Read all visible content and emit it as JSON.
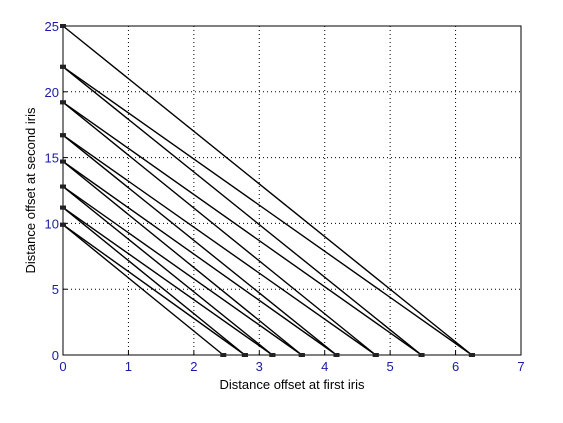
{
  "chart_data": {
    "type": "line",
    "title": "",
    "xlabel": "Distance offset at first iris",
    "ylabel": "Distance offset at second iris",
    "xlim": [
      0,
      7
    ],
    "ylim": [
      0,
      25
    ],
    "x_ticks": [
      0,
      1,
      2,
      3,
      4,
      5,
      6,
      7
    ],
    "y_ticks": [
      0,
      5,
      10,
      15,
      20,
      25
    ],
    "grid": true,
    "grid_style": "dotted",
    "legend": "none",
    "colors": {
      "line": "#000000",
      "tick_label": "#1a1aaa",
      "grid": "#000000"
    },
    "series": [
      {
        "x": [
          0,
          2.45
        ],
        "y": [
          9.9,
          0
        ]
      },
      {
        "x": [
          0,
          2.78
        ],
        "y": [
          9.9,
          0
        ]
      },
      {
        "x": [
          0,
          2.78
        ],
        "y": [
          11.2,
          0
        ]
      },
      {
        "x": [
          0,
          3.2
        ],
        "y": [
          11.2,
          0
        ]
      },
      {
        "x": [
          0,
          3.2
        ],
        "y": [
          12.8,
          0
        ]
      },
      {
        "x": [
          0,
          3.65
        ],
        "y": [
          12.8,
          0
        ]
      },
      {
        "x": [
          0,
          3.65
        ],
        "y": [
          14.7,
          0
        ]
      },
      {
        "x": [
          0,
          4.18
        ],
        "y": [
          14.7,
          0
        ]
      },
      {
        "x": [
          0,
          4.18
        ],
        "y": [
          16.7,
          0
        ]
      },
      {
        "x": [
          0,
          4.78
        ],
        "y": [
          16.7,
          0
        ]
      },
      {
        "x": [
          0,
          4.78
        ],
        "y": [
          19.2,
          0
        ]
      },
      {
        "x": [
          0,
          5.48
        ],
        "y": [
          19.2,
          0
        ]
      },
      {
        "x": [
          0,
          5.48
        ],
        "y": [
          21.9,
          0
        ]
      },
      {
        "x": [
          0,
          6.25
        ],
        "y": [
          21.9,
          0
        ]
      },
      {
        "x": [
          0,
          6.25
        ],
        "y": [
          25.0,
          0
        ]
      }
    ]
  }
}
